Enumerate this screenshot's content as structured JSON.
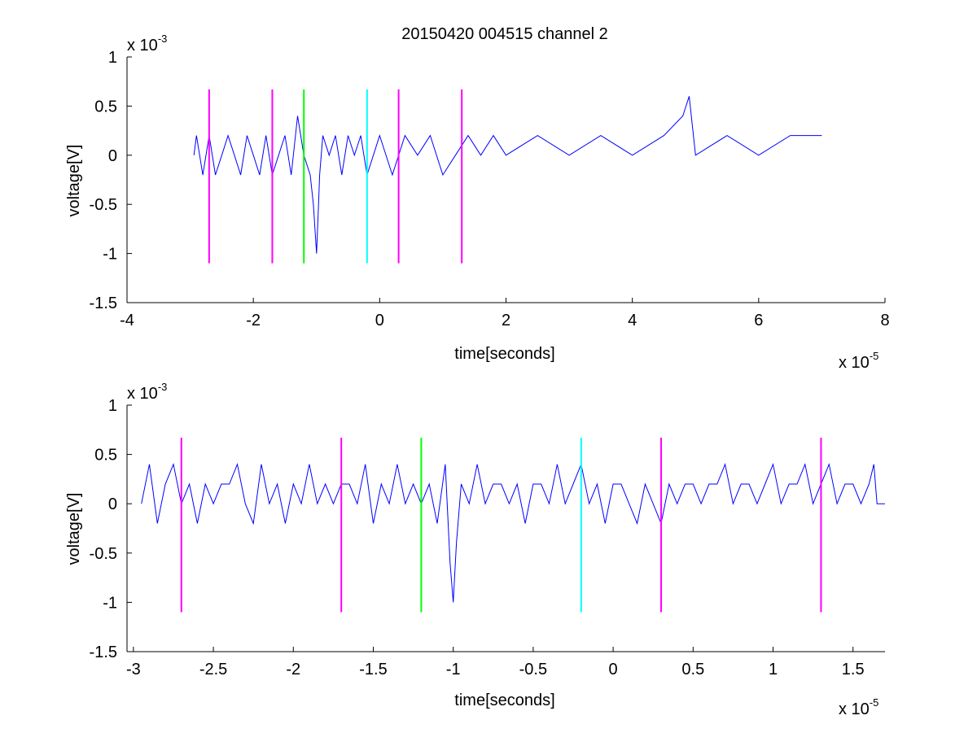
{
  "title": "20150420 004515 channel 2",
  "chart_data": [
    {
      "type": "line",
      "xlabel": "time[seconds]",
      "ylabel": "voltage[V]",
      "x_exponent_label": "x 10",
      "x_exponent": "-5",
      "y_exponent_label": "x 10",
      "y_exponent": "-3",
      "xlim": [
        -4,
        8
      ],
      "ylim": [
        -1.5,
        1
      ],
      "xticks": [
        "-4",
        "-2",
        "0",
        "2",
        "4",
        "6",
        "8"
      ],
      "yticks": [
        "1",
        "0.5",
        "0",
        "-0.5",
        "-1",
        "-1.5"
      ],
      "xtick_values": [
        -4,
        -2,
        0,
        2,
        4,
        6,
        8
      ],
      "ytick_values": [
        1,
        0.5,
        0,
        -0.5,
        -1,
        -1.5
      ],
      "grid": false,
      "series": [
        {
          "color": "#0000ff",
          "x": [
            -2.94,
            -2.9,
            -2.8,
            -2.7,
            -2.6,
            -2.5,
            -2.4,
            -2.3,
            -2.2,
            -2.1,
            -2.0,
            -1.9,
            -1.8,
            -1.7,
            -1.6,
            -1.5,
            -1.4,
            -1.3,
            -1.2,
            -1.1,
            -1.05,
            -1.0,
            -0.98,
            -0.95,
            -0.9,
            -0.8,
            -0.7,
            -0.6,
            -0.5,
            -0.4,
            -0.3,
            -0.2,
            -0.1,
            0.0,
            0.2,
            0.4,
            0.6,
            0.8,
            1.0,
            1.2,
            1.4,
            1.6,
            1.8,
            2.0,
            2.5,
            3.0,
            3.5,
            4.0,
            4.5,
            4.8,
            4.9,
            5.0,
            5.5,
            6.0,
            6.5,
            7.0
          ],
          "y": [
            0.0,
            0.2,
            -0.2,
            0.2,
            -0.2,
            0.0,
            0.2,
            0.0,
            -0.2,
            0.2,
            0.0,
            -0.2,
            0.2,
            -0.2,
            0.0,
            0.2,
            -0.2,
            0.4,
            0.0,
            -0.2,
            -0.5,
            -1.0,
            -0.7,
            -0.2,
            0.2,
            0.0,
            0.2,
            -0.2,
            0.2,
            0.0,
            0.2,
            -0.2,
            0.0,
            0.2,
            -0.2,
            0.2,
            0.0,
            0.2,
            -0.2,
            0.0,
            0.2,
            0.0,
            0.2,
            0.0,
            0.2,
            0.0,
            0.2,
            0.0,
            0.2,
            0.4,
            0.6,
            0.0,
            0.2,
            0.0,
            0.2,
            0.2
          ]
        }
      ],
      "vlines": [
        {
          "x": -2.7,
          "color": "#ff00ff"
        },
        {
          "x": -1.7,
          "color": "#ff00ff"
        },
        {
          "x": -1.2,
          "color": "#00ff00"
        },
        {
          "x": -0.2,
          "color": "#00ffff"
        },
        {
          "x": 0.3,
          "color": "#ff00ff"
        },
        {
          "x": 1.3,
          "color": "#ff00ff"
        }
      ],
      "vline_range": [
        -1.1,
        0.67
      ]
    },
    {
      "type": "line",
      "xlabel": "time[seconds]",
      "ylabel": "voltage[V]",
      "x_exponent_label": "x 10",
      "x_exponent": "-5",
      "y_exponent_label": "x 10",
      "y_exponent": "-3",
      "xlim": [
        -3.04,
        1.7
      ],
      "ylim": [
        -1.5,
        1
      ],
      "xticks": [
        "-3",
        "-2.5",
        "-2",
        "-1.5",
        "-1",
        "-0.5",
        "0",
        "0.5",
        "1",
        "1.5"
      ],
      "yticks": [
        "1",
        "0.5",
        "0",
        "-0.5",
        "-1",
        "-1.5"
      ],
      "xtick_values": [
        -3,
        -2.5,
        -2,
        -1.5,
        -1,
        -0.5,
        0,
        0.5,
        1,
        1.5
      ],
      "ytick_values": [
        1,
        0.5,
        0,
        -0.5,
        -1,
        -1.5
      ],
      "grid": false,
      "series": [
        {
          "color": "#0000ff",
          "x": [
            -2.95,
            -2.9,
            -2.85,
            -2.8,
            -2.75,
            -2.7,
            -2.65,
            -2.6,
            -2.55,
            -2.5,
            -2.45,
            -2.4,
            -2.35,
            -2.3,
            -2.25,
            -2.2,
            -2.15,
            -2.1,
            -2.05,
            -2.0,
            -1.95,
            -1.9,
            -1.85,
            -1.8,
            -1.75,
            -1.7,
            -1.65,
            -1.6,
            -1.55,
            -1.5,
            -1.45,
            -1.4,
            -1.35,
            -1.3,
            -1.25,
            -1.2,
            -1.15,
            -1.1,
            -1.05,
            -1.02,
            -1.0,
            -0.98,
            -0.95,
            -0.9,
            -0.85,
            -0.8,
            -0.75,
            -0.7,
            -0.65,
            -0.6,
            -0.55,
            -0.5,
            -0.45,
            -0.4,
            -0.35,
            -0.3,
            -0.25,
            -0.2,
            -0.15,
            -0.1,
            -0.05,
            0.0,
            0.05,
            0.1,
            0.15,
            0.2,
            0.25,
            0.3,
            0.35,
            0.4,
            0.45,
            0.5,
            0.55,
            0.6,
            0.65,
            0.7,
            0.75,
            0.8,
            0.85,
            0.9,
            0.95,
            1.0,
            1.05,
            1.1,
            1.15,
            1.2,
            1.25,
            1.3,
            1.35,
            1.4,
            1.45,
            1.5,
            1.55,
            1.6,
            1.63,
            1.65,
            1.7
          ],
          "y": [
            0.0,
            0.4,
            -0.2,
            0.2,
            0.4,
            0.0,
            0.2,
            -0.2,
            0.2,
            0.0,
            0.2,
            0.2,
            0.4,
            0.0,
            -0.2,
            0.4,
            0.0,
            0.2,
            -0.2,
            0.2,
            0.0,
            0.4,
            0.0,
            0.2,
            0.0,
            0.2,
            0.2,
            0.0,
            0.4,
            -0.2,
            0.2,
            0.0,
            0.4,
            0.0,
            0.2,
            0.0,
            0.2,
            -0.2,
            0.4,
            -0.6,
            -1.0,
            -0.4,
            0.2,
            0.0,
            0.4,
            0.0,
            0.2,
            0.2,
            0.0,
            0.2,
            -0.2,
            0.2,
            0.2,
            0.0,
            0.4,
            0.0,
            0.2,
            0.4,
            0.0,
            0.2,
            -0.2,
            0.2,
            0.2,
            0.0,
            -0.2,
            0.2,
            0.0,
            -0.2,
            0.2,
            0.0,
            0.2,
            0.2,
            0.0,
            0.2,
            0.2,
            0.4,
            0.0,
            0.2,
            0.2,
            0.0,
            0.2,
            0.4,
            0.0,
            0.2,
            0.2,
            0.4,
            0.0,
            0.2,
            0.4,
            0.0,
            0.2,
            0.2,
            0.0,
            0.2,
            0.4,
            0.0,
            0.0
          ]
        }
      ],
      "vlines": [
        {
          "x": -2.7,
          "color": "#ff00ff"
        },
        {
          "x": -1.7,
          "color": "#ff00ff"
        },
        {
          "x": -1.2,
          "color": "#00ff00"
        },
        {
          "x": -0.2,
          "color": "#00ffff"
        },
        {
          "x": 0.3,
          "color": "#ff00ff"
        },
        {
          "x": 1.3,
          "color": "#ff00ff"
        }
      ],
      "vline_range": [
        -1.1,
        0.67
      ]
    }
  ]
}
